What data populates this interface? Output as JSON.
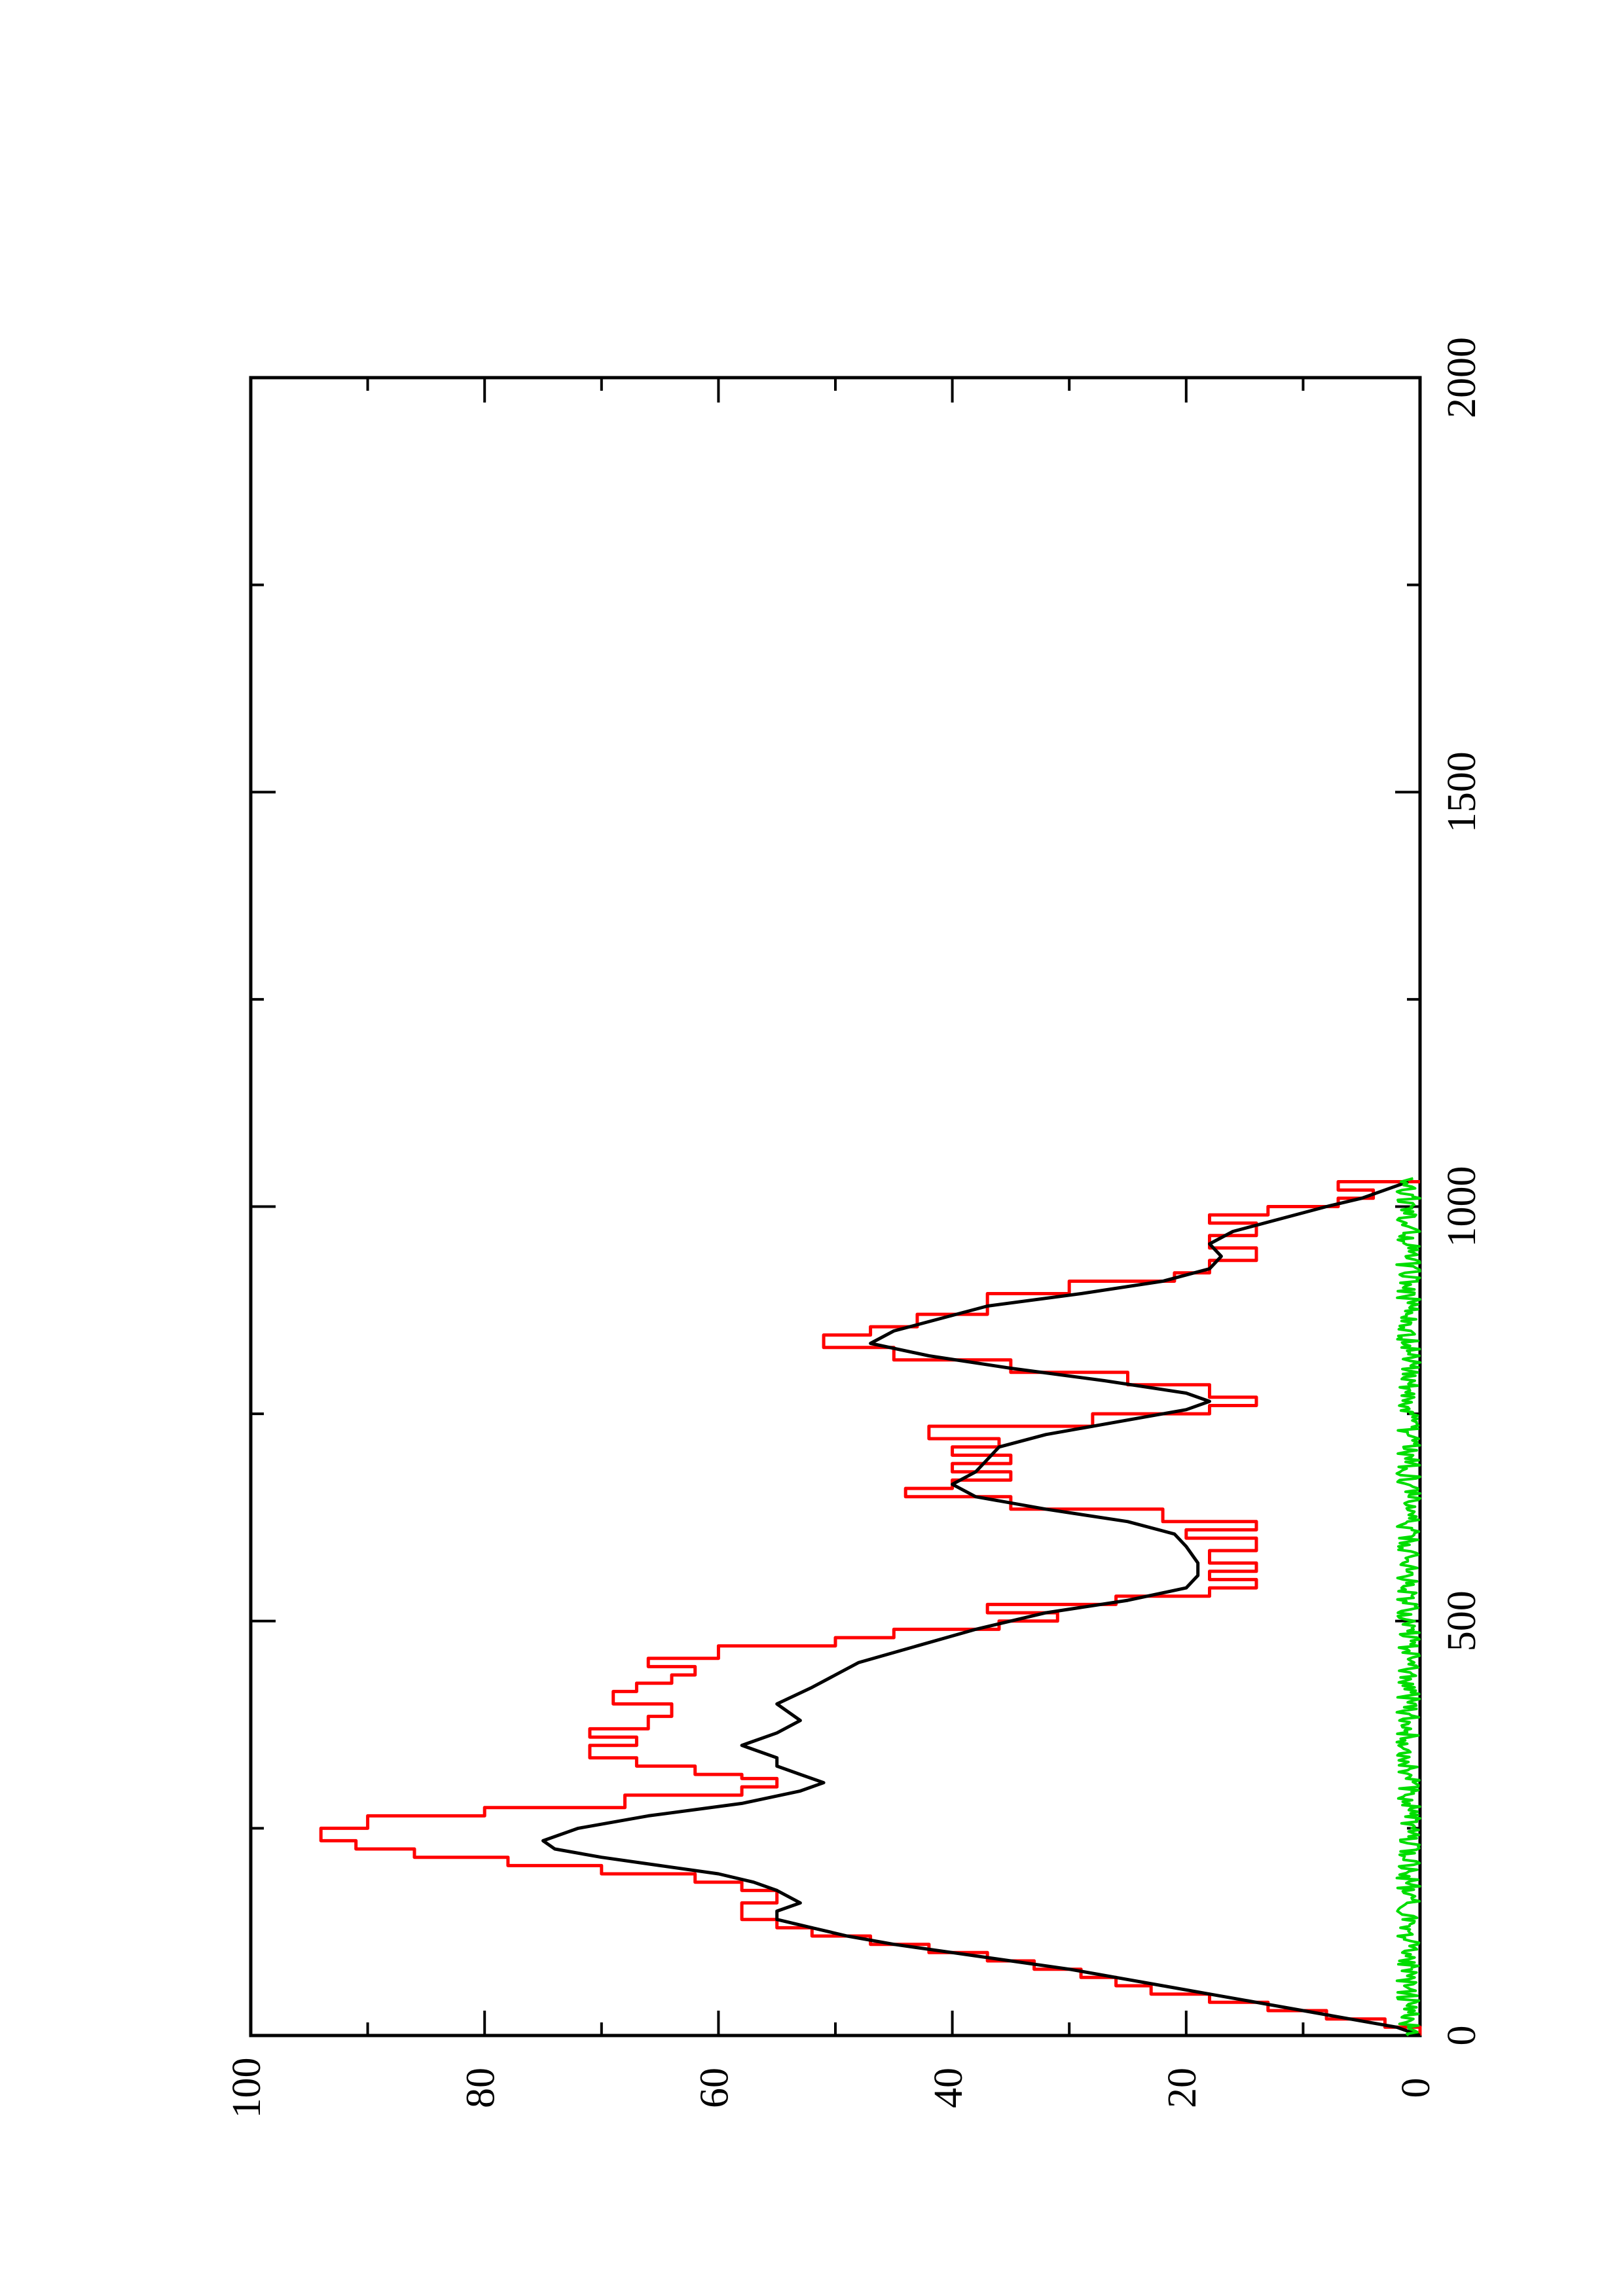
{
  "chart_data": {
    "type": "line",
    "orientation": "rotated-90-counterclockwise",
    "title": "",
    "xlabel": "",
    "ylabel": "",
    "xlim": [
      0,
      2000
    ],
    "ylim": [
      0,
      100
    ],
    "x_ticks": [
      0,
      500,
      1000,
      1500,
      2000
    ],
    "x_minor_ticks": [
      250,
      750,
      1250,
      1750
    ],
    "y_ticks": [
      0,
      20,
      40,
      60,
      80,
      100
    ],
    "y_minor_ticks": [
      10,
      30,
      50,
      70,
      90
    ],
    "grid": false,
    "series": [
      {
        "color": "#ff0000",
        "style": "step",
        "points": [
          [
            0,
            0
          ],
          [
            10,
            3
          ],
          [
            20,
            8
          ],
          [
            30,
            13
          ],
          [
            40,
            18
          ],
          [
            50,
            23
          ],
          [
            60,
            26
          ],
          [
            70,
            29
          ],
          [
            80,
            33
          ],
          [
            90,
            37
          ],
          [
            100,
            42
          ],
          [
            110,
            47
          ],
          [
            120,
            52
          ],
          [
            130,
            55
          ],
          [
            140,
            58
          ],
          [
            150,
            58
          ],
          [
            160,
            55
          ],
          [
            175,
            58
          ],
          [
            185,
            62
          ],
          [
            195,
            70
          ],
          [
            205,
            78
          ],
          [
            215,
            86
          ],
          [
            225,
            91
          ],
          [
            235,
            94
          ],
          [
            250,
            90
          ],
          [
            265,
            80
          ],
          [
            275,
            68
          ],
          [
            290,
            58
          ],
          [
            300,
            55
          ],
          [
            310,
            58
          ],
          [
            315,
            62
          ],
          [
            325,
            67
          ],
          [
            335,
            71
          ],
          [
            350,
            67
          ],
          [
            360,
            71
          ],
          [
            370,
            66
          ],
          [
            385,
            64
          ],
          [
            400,
            69
          ],
          [
            415,
            67
          ],
          [
            425,
            64
          ],
          [
            435,
            62
          ],
          [
            445,
            66
          ],
          [
            455,
            60
          ],
          [
            470,
            50
          ],
          [
            480,
            45
          ],
          [
            490,
            36
          ],
          [
            500,
            31
          ],
          [
            510,
            37
          ],
          [
            520,
            26
          ],
          [
            530,
            18
          ],
          [
            540,
            14
          ],
          [
            550,
            18
          ],
          [
            560,
            14
          ],
          [
            570,
            18
          ],
          [
            585,
            14
          ],
          [
            600,
            20
          ],
          [
            610,
            14
          ],
          [
            620,
            22
          ],
          [
            635,
            35
          ],
          [
            650,
            44
          ],
          [
            660,
            40
          ],
          [
            670,
            35
          ],
          [
            680,
            40
          ],
          [
            690,
            35
          ],
          [
            700,
            40
          ],
          [
            710,
            36
          ],
          [
            720,
            42
          ],
          [
            735,
            28
          ],
          [
            750,
            18
          ],
          [
            760,
            14
          ],
          [
            770,
            18
          ],
          [
            785,
            25
          ],
          [
            800,
            35
          ],
          [
            815,
            45
          ],
          [
            830,
            51
          ],
          [
            845,
            47
          ],
          [
            855,
            43
          ],
          [
            870,
            37
          ],
          [
            880,
            37
          ],
          [
            895,
            30
          ],
          [
            910,
            21
          ],
          [
            920,
            18
          ],
          [
            935,
            14
          ],
          [
            950,
            18
          ],
          [
            965,
            14
          ],
          [
            980,
            18
          ],
          [
            990,
            13
          ],
          [
            1000,
            7
          ],
          [
            1010,
            4
          ],
          [
            1020,
            7
          ],
          [
            1030,
            0
          ]
        ]
      },
      {
        "color": "#000000",
        "style": "line",
        "points": [
          [
            0,
            0
          ],
          [
            10,
            2
          ],
          [
            20,
            6
          ],
          [
            30,
            10
          ],
          [
            40,
            14
          ],
          [
            50,
            18
          ],
          [
            60,
            22
          ],
          [
            70,
            26
          ],
          [
            80,
            30
          ],
          [
            90,
            35
          ],
          [
            100,
            40
          ],
          [
            110,
            45
          ],
          [
            120,
            49
          ],
          [
            130,
            52
          ],
          [
            140,
            55
          ],
          [
            150,
            55
          ],
          [
            160,
            53
          ],
          [
            175,
            55
          ],
          [
            185,
            57
          ],
          [
            195,
            60
          ],
          [
            205,
            65
          ],
          [
            215,
            70
          ],
          [
            225,
            74
          ],
          [
            235,
            75
          ],
          [
            250,
            72
          ],
          [
            265,
            66
          ],
          [
            280,
            58
          ],
          [
            295,
            53
          ],
          [
            305,
            51
          ],
          [
            315,
            53
          ],
          [
            325,
            55
          ],
          [
            335,
            55
          ],
          [
            350,
            58
          ],
          [
            365,
            55
          ],
          [
            380,
            53
          ],
          [
            400,
            55
          ],
          [
            420,
            52
          ],
          [
            435,
            50
          ],
          [
            450,
            48
          ],
          [
            470,
            43
          ],
          [
            490,
            38
          ],
          [
            510,
            32
          ],
          [
            525,
            25
          ],
          [
            540,
            20
          ],
          [
            555,
            19
          ],
          [
            570,
            19
          ],
          [
            590,
            20
          ],
          [
            605,
            21
          ],
          [
            620,
            25
          ],
          [
            635,
            32
          ],
          [
            650,
            38
          ],
          [
            665,
            40
          ],
          [
            680,
            38
          ],
          [
            695,
            37
          ],
          [
            710,
            36
          ],
          [
            725,
            32
          ],
          [
            740,
            26
          ],
          [
            755,
            20
          ],
          [
            765,
            18
          ],
          [
            775,
            20
          ],
          [
            790,
            27
          ],
          [
            805,
            35
          ],
          [
            820,
            42
          ],
          [
            835,
            47
          ],
          [
            850,
            45
          ],
          [
            865,
            41
          ],
          [
            880,
            37
          ],
          [
            895,
            29
          ],
          [
            910,
            22
          ],
          [
            925,
            18
          ],
          [
            940,
            17
          ],
          [
            955,
            18
          ],
          [
            970,
            16
          ],
          [
            985,
            12
          ],
          [
            1000,
            8
          ],
          [
            1010,
            5
          ],
          [
            1020,
            3
          ],
          [
            1030,
            1
          ]
        ]
      },
      {
        "color": "#00dd00",
        "style": "noise",
        "x_range": [
          0,
          1035
        ],
        "y_range": [
          0,
          2
        ]
      }
    ]
  }
}
